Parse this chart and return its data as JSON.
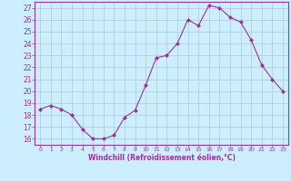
{
  "x": [
    0,
    1,
    2,
    3,
    4,
    5,
    6,
    7,
    8,
    9,
    10,
    11,
    12,
    13,
    14,
    15,
    16,
    17,
    18,
    19,
    20,
    21,
    22,
    23
  ],
  "y": [
    18.5,
    18.8,
    18.5,
    18.0,
    16.8,
    16.0,
    16.0,
    16.3,
    17.8,
    18.4,
    20.5,
    22.8,
    23.0,
    24.0,
    26.0,
    25.5,
    27.2,
    27.0,
    26.2,
    25.8,
    24.3,
    22.2,
    21.0,
    20.0
  ],
  "line_color": "#993399",
  "marker_color": "#993399",
  "bg_color": "#cceeff",
  "grid_color": "#aacccc",
  "xlabel": "Windchill (Refroidissement éolien,°C)",
  "ylim_min": 16,
  "ylim_max": 27,
  "xlim_min": 0,
  "xlim_max": 23,
  "yticks": [
    16,
    17,
    18,
    19,
    20,
    21,
    22,
    23,
    24,
    25,
    26,
    27
  ],
  "xticks": [
    0,
    1,
    2,
    3,
    4,
    5,
    6,
    7,
    8,
    9,
    10,
    11,
    12,
    13,
    14,
    15,
    16,
    17,
    18,
    19,
    20,
    21,
    22,
    23
  ],
  "font_color": "#993399"
}
